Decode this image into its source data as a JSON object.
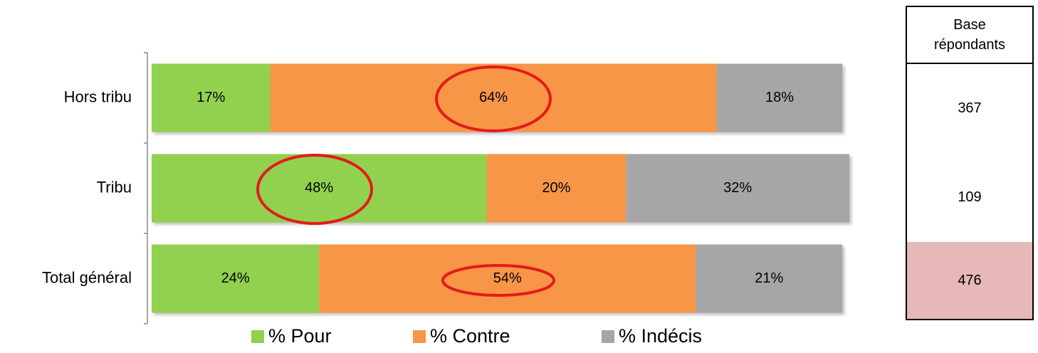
{
  "chart_data": {
    "type": "stacked-bar",
    "orientation": "horizontal",
    "categories": [
      "Hors tribu",
      "Tribu",
      "Total général"
    ],
    "series": [
      {
        "name": "% Pour",
        "color": "#92d050",
        "values": [
          17,
          48,
          24
        ],
        "value_labels": [
          "17%",
          "48%",
          "24%"
        ]
      },
      {
        "name": "% Contre",
        "color": "#f79646",
        "values": [
          64,
          20,
          54
        ],
        "value_labels": [
          "64%",
          "20%",
          "54%"
        ]
      },
      {
        "name": "% Indécis",
        "color": "#a6a6a6",
        "values": [
          18,
          32,
          21
        ],
        "value_labels": [
          "18%",
          "32%",
          "21%"
        ]
      }
    ],
    "xlim": [
      0,
      100
    ],
    "legend": "bottom",
    "table": {
      "header": "Base répondants",
      "values": [
        367,
        109,
        476
      ],
      "highlight_row": 2,
      "highlight_color": "#e6b8b8"
    }
  }
}
